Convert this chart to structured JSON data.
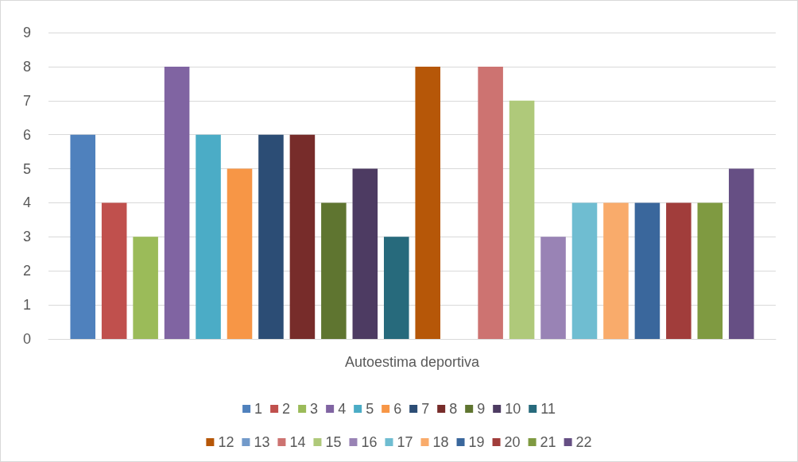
{
  "chart_data": {
    "type": "bar",
    "categories": [
      "Autoestima deportiva"
    ],
    "ylim": [
      0,
      9
    ],
    "yticks": [
      0,
      1,
      2,
      3,
      4,
      5,
      6,
      7,
      8,
      9
    ],
    "grid": "y",
    "legend": "bottom",
    "series": [
      {
        "name": "1",
        "color": "#4f81bd",
        "values": [
          6
        ]
      },
      {
        "name": "2",
        "color": "#c0504d",
        "values": [
          4
        ]
      },
      {
        "name": "3",
        "color": "#9bbb59",
        "values": [
          3
        ]
      },
      {
        "name": "4",
        "color": "#8064a2",
        "values": [
          8
        ]
      },
      {
        "name": "5",
        "color": "#4bacc6",
        "values": [
          6
        ]
      },
      {
        "name": "6",
        "color": "#f79646",
        "values": [
          5
        ]
      },
      {
        "name": "7",
        "color": "#2c4d75",
        "values": [
          6
        ]
      },
      {
        "name": "8",
        "color": "#772c2a",
        "values": [
          6
        ]
      },
      {
        "name": "9",
        "color": "#5f7530",
        "values": [
          4
        ]
      },
      {
        "name": "10",
        "color": "#4d3b62",
        "values": [
          5
        ]
      },
      {
        "name": "11",
        "color": "#276a7c",
        "values": [
          3
        ]
      },
      {
        "name": "12",
        "color": "#b65708",
        "values": [
          8
        ]
      },
      {
        "name": "13",
        "color": "#729aca",
        "values": [
          0
        ]
      },
      {
        "name": "14",
        "color": "#cd7371",
        "values": [
          8
        ]
      },
      {
        "name": "15",
        "color": "#afc97a",
        "values": [
          7
        ]
      },
      {
        "name": "16",
        "color": "#9983b5",
        "values": [
          3
        ]
      },
      {
        "name": "17",
        "color": "#6fbdd1",
        "values": [
          4
        ]
      },
      {
        "name": "18",
        "color": "#f9ab6b",
        "values": [
          4
        ]
      },
      {
        "name": "19",
        "color": "#3a679c",
        "values": [
          4
        ]
      },
      {
        "name": "20",
        "color": "#a13d3b",
        "values": [
          4
        ]
      },
      {
        "name": "21",
        "color": "#7f9a41",
        "values": [
          4
        ]
      },
      {
        "name": "22",
        "color": "#664f84",
        "values": [
          5
        ]
      }
    ]
  }
}
